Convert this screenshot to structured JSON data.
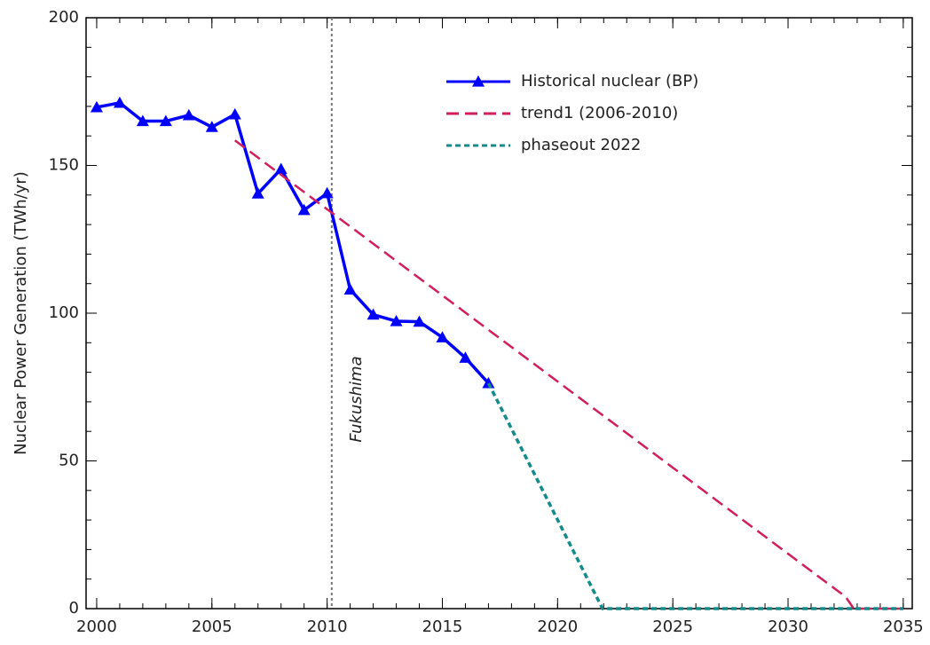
{
  "chart_data": {
    "type": "line",
    "ylabel": "Nuclear Power Generation (TWh/yr)",
    "xlim": [
      1999.54,
      2035.39
    ],
    "ylim": [
      0,
      200
    ],
    "xticks": [
      2000,
      2005,
      2010,
      2015,
      2020,
      2025,
      2030,
      2035
    ],
    "yticks": [
      0,
      50,
      100,
      150,
      200
    ],
    "xminor": 1,
    "yminor": 10,
    "series": [
      {
        "name": "Historical nuclear (BP)",
        "color": "#0000ff",
        "dash": "solid",
        "marker": "triangle",
        "x": [
          2000,
          2001,
          2002,
          2003,
          2004,
          2005,
          2006,
          2007,
          2008,
          2009,
          2010,
          2011,
          2012,
          2013,
          2014,
          2015,
          2016,
          2017
        ],
        "values": [
          169.7,
          171.2,
          165,
          165,
          167,
          163,
          167.3,
          140.5,
          148.8,
          134.9,
          140.6,
          108,
          99.5,
          97.3,
          97.1,
          91.8,
          84.9,
          76.3
        ]
      },
      {
        "name": "trend1 (2006-2010)",
        "color": "#d21f5a",
        "dash": "long",
        "x": [
          2006,
          2032.5,
          2032.85,
          2035
        ],
        "values": [
          158.5,
          4,
          0,
          0
        ]
      },
      {
        "name": "phaseout 2022",
        "color": "#138b8b",
        "dash": "short",
        "x": [
          2017,
          2021.95,
          2035
        ],
        "values": [
          76.3,
          0,
          0
        ]
      }
    ],
    "annotations": [
      {
        "text": "Fukushima",
        "x": 2010.2
      }
    ]
  }
}
